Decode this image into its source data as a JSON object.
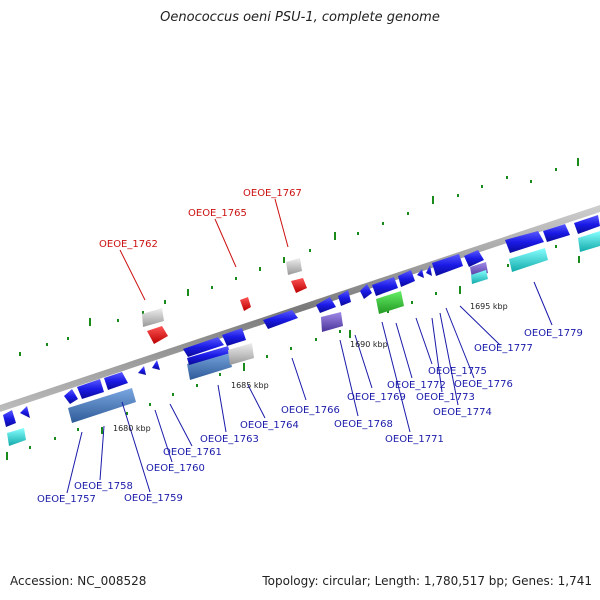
{
  "title": "Oenococcus oeni PSU-1, complete genome",
  "footer": {
    "accession": "Accession: NC_008528",
    "stats": "Topology: circular; Length: 1,780,517 bp; Genes: 1,741"
  },
  "colors": {
    "backbone": "#8a8a8a",
    "gene_blue": "#1a1ae6",
    "gene_blue_light": "#3e6fb8",
    "gene_red": "#ee1111",
    "gene_gray": "#c8c8c8",
    "gene_cyan": "#22cccc",
    "gene_green": "#33bb33",
    "gene_purple": "#7a5ccc",
    "tick_green": "#1a8a1a",
    "label_blue": "#1a1aaa",
    "label_red": "#cc1111"
  },
  "kbp_labels": [
    {
      "text": "1680 kbp",
      "kbp": 1680
    },
    {
      "text": "1685 kbp",
      "kbp": 1685
    },
    {
      "text": "1690 kbp",
      "kbp": 1690
    },
    {
      "text": "1695 kbp",
      "kbp": 1695
    }
  ],
  "gene_labels": [
    {
      "text": "OEOE_1757",
      "color": "blue"
    },
    {
      "text": "OEOE_1758",
      "color": "blue"
    },
    {
      "text": "OEOE_1759",
      "color": "blue"
    },
    {
      "text": "OEOE_1760",
      "color": "blue"
    },
    {
      "text": "OEOE_1761",
      "color": "blue"
    },
    {
      "text": "OEOE_1762",
      "color": "red"
    },
    {
      "text": "OEOE_1763",
      "color": "blue"
    },
    {
      "text": "OEOE_1764",
      "color": "blue"
    },
    {
      "text": "OEOE_1765",
      "color": "red"
    },
    {
      "text": "OEOE_1766",
      "color": "blue"
    },
    {
      "text": "OEOE_1767",
      "color": "red"
    },
    {
      "text": "OEOE_1768",
      "color": "blue"
    },
    {
      "text": "OEOE_1769",
      "color": "blue"
    },
    {
      "text": "OEOE_1771",
      "color": "blue"
    },
    {
      "text": "OEOE_1772",
      "color": "blue"
    },
    {
      "text": "OEOE_1773",
      "color": "blue"
    },
    {
      "text": "OEOE_1774",
      "color": "blue"
    },
    {
      "text": "OEOE_1775",
      "color": "blue"
    },
    {
      "text": "OEOE_1776",
      "color": "blue"
    },
    {
      "text": "OEOE_1777",
      "color": "blue"
    },
    {
      "text": "OEOE_1779",
      "color": "blue"
    }
  ]
}
